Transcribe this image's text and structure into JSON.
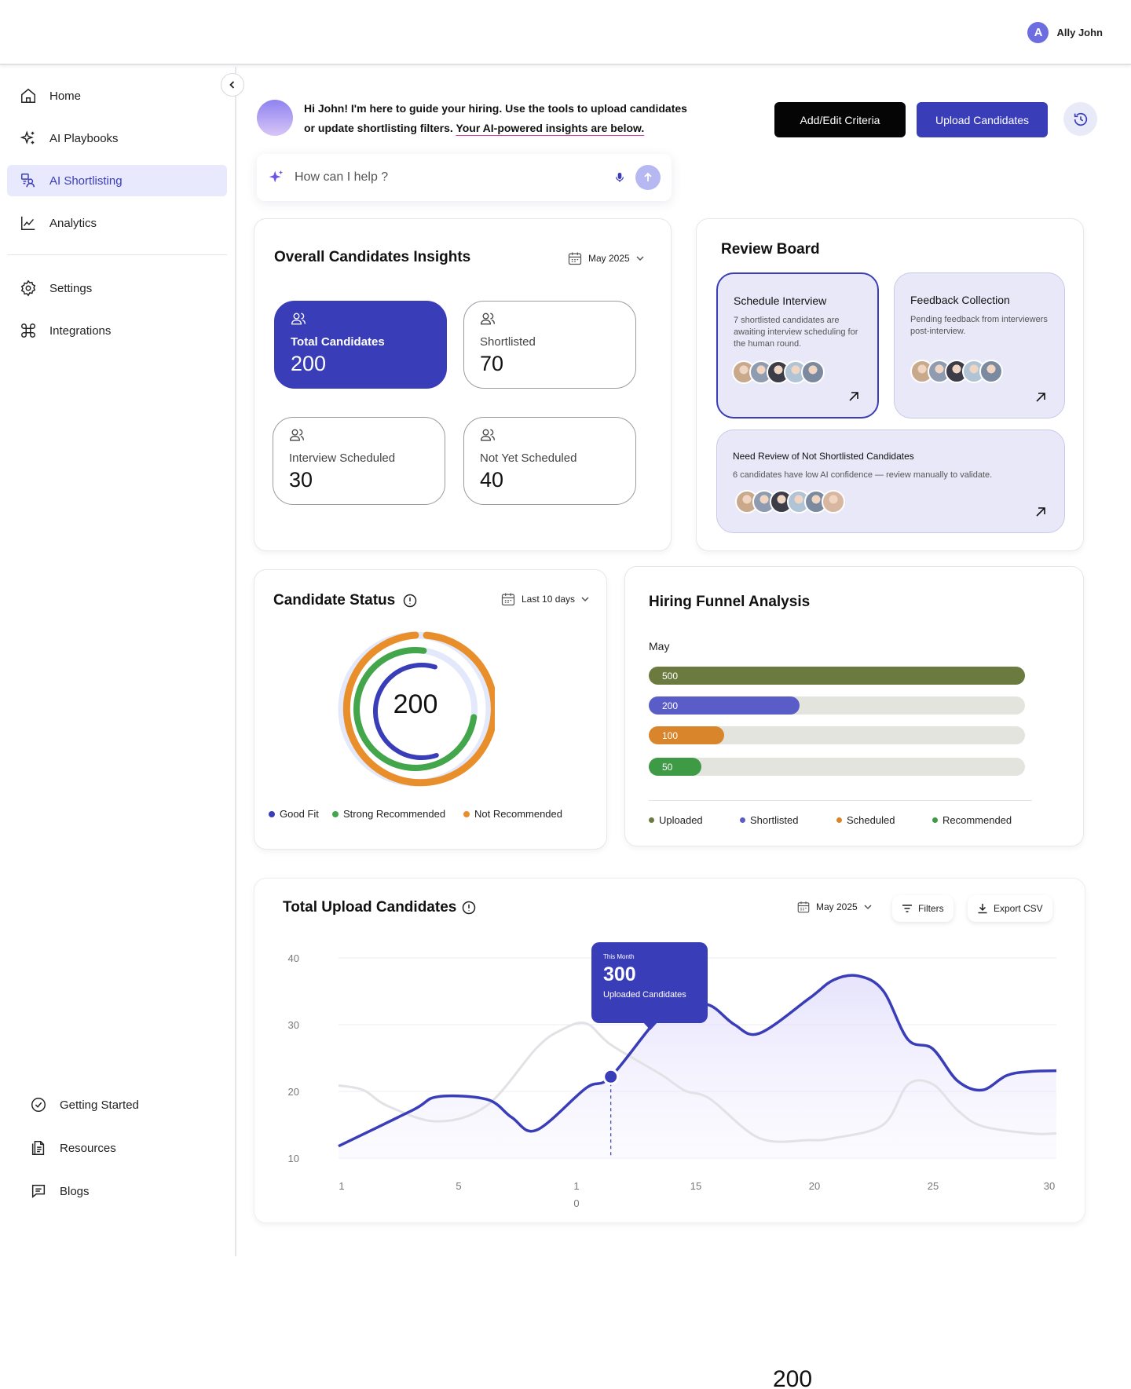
{
  "user": {
    "initial": "A",
    "name": "Ally John"
  },
  "sidebar": {
    "items": [
      {
        "label": "Home",
        "icon": "home-icon"
      },
      {
        "label": "AI Playbooks",
        "icon": "sparkle-icon"
      },
      {
        "label": "AI Shortlisting",
        "icon": "shortlist-icon",
        "active": true
      },
      {
        "label": "Analytics",
        "icon": "analytics-icon"
      },
      {
        "label": "Settings",
        "icon": "gear-icon"
      },
      {
        "label": "Integrations",
        "icon": "command-icon"
      }
    ],
    "bottom_items": [
      {
        "label": "Getting Started",
        "icon": "check-circle-icon"
      },
      {
        "label": "Resources",
        "icon": "document-icon"
      },
      {
        "label": "Blogs",
        "icon": "message-icon"
      }
    ]
  },
  "greeting": {
    "line1": "Hi John! I'm here to guide your hiring. Use the tools  to upload candidates",
    "line2a": "or update shortlisting filters. ",
    "line2b": "Your AI-powered insights are below."
  },
  "actions": {
    "add_edit": "Add/Edit Criteria",
    "upload": "Upload Candidates"
  },
  "search": {
    "placeholder": "How can I help ?"
  },
  "insights": {
    "title": "Overall Candidates Insights",
    "period": "May 2025",
    "stats": [
      {
        "label": "Total Candidates",
        "value": "200"
      },
      {
        "label": "Shortlisted",
        "value": "70"
      },
      {
        "label": "Interview Scheduled",
        "value": "30"
      },
      {
        "label": "Not Yet Scheduled",
        "value": "40"
      }
    ]
  },
  "review_board": {
    "title": "Review Board",
    "cards": [
      {
        "title": "Schedule Interview",
        "desc": "7 shortlisted candidates are awaiting interview scheduling for the human round."
      },
      {
        "title": "Feedback Collection",
        "desc": "Pending feedback from interviewers post-interview."
      },
      {
        "title": "Need Review of Not Shortlisted Candidates",
        "desc": "6 candidates have low AI confidence — review manually to validate."
      }
    ],
    "avatar_colors": [
      "#c9a98c",
      "#8f9bb0",
      "#3d3d4a",
      "#b0c4d6",
      "#7c8aa0",
      "#d8b7a0"
    ]
  },
  "candidate_status": {
    "title": "Candidate Status",
    "period": "Last 10 days",
    "center_value": "200",
    "legend": [
      {
        "label": "Good Fit",
        "color": "#3a3db8"
      },
      {
        "label": "Strong Recommended",
        "color": "#43a64a"
      },
      {
        "label": "Not Recommended",
        "color": "#e88f2c"
      }
    ]
  },
  "funnel": {
    "title": "Hiring Funnel Analysis",
    "month": "May",
    "bars": [
      {
        "value": 500,
        "label": "500",
        "color": "#6b7a3e"
      },
      {
        "value": 200,
        "label": "200",
        "color": "#5a5cc8"
      },
      {
        "value": 100,
        "label": "100",
        "color": "#d9852c"
      },
      {
        "value": 50,
        "label": "50",
        "color": "#3e9a44"
      }
    ],
    "legend": [
      {
        "label": "Uploaded",
        "color": "#6b7a3e"
      },
      {
        "label": "Shortlisted",
        "color": "#5a5cc8"
      },
      {
        "label": "Scheduled",
        "color": "#d9852c"
      },
      {
        "label": "Recommended",
        "color": "#3e9a44"
      }
    ]
  },
  "uploads": {
    "title": "Total Upload Candidates",
    "period": "May 2025",
    "filters": "Filters",
    "export": "Export CSV",
    "tooltip": {
      "caption": "This Month",
      "value": "300",
      "subtitle": "Uploaded Candidates"
    }
  },
  "chart_data": {
    "type": "line",
    "title": "Total Upload Candidates",
    "x_tick_labels": [
      "1",
      "5",
      "1\n0",
      "15",
      "20",
      "25",
      "30"
    ],
    "y_tick_labels": [
      "40",
      "30",
      "20",
      "10"
    ],
    "ylim": [
      10,
      40
    ],
    "xlim": [
      1,
      30
    ],
    "grid": true,
    "series": [
      {
        "color": "#3a3db8",
        "x": [
          1,
          4,
          5,
          7,
          8,
          9,
          11,
          12,
          14,
          15,
          16,
          17,
          18,
          20,
          21,
          22,
          23,
          24,
          25,
          26,
          27,
          28,
          29,
          30
        ],
        "y": [
          11.8,
          17.2,
          19.2,
          18.8,
          16.1,
          14.2,
          20.5,
          22.2,
          31.3,
          32.8,
          32.9,
          30.0,
          28.7,
          33.9,
          36.7,
          37.3,
          35.1,
          27.8,
          26.4,
          21.6,
          20.2,
          22.4,
          23.0,
          23.1
        ]
      },
      {
        "color": "#e2e2e6",
        "x": [
          1,
          2,
          3,
          5,
          7,
          9,
          10,
          11,
          12,
          14,
          15,
          16,
          18,
          20,
          21,
          23,
          24,
          25,
          26,
          27,
          29,
          30
        ],
        "y": [
          20.9,
          20.2,
          17.8,
          15.5,
          17.9,
          26.5,
          29.2,
          30.2,
          27.0,
          22.6,
          20.1,
          18.9,
          13.0,
          12.7,
          13.0,
          15.0,
          21.0,
          21.1,
          17.2,
          14.8,
          13.7,
          13.7
        ]
      }
    ],
    "highlight": {
      "x": 12,
      "y": 22.2
    }
  }
}
